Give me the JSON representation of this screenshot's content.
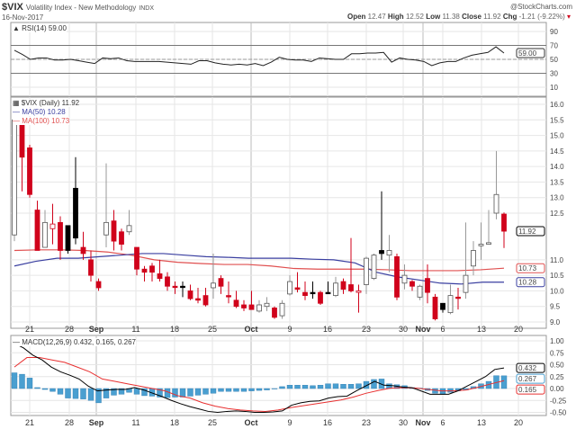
{
  "header": {
    "symbol": "$VIX",
    "name": "Volatility Index - New Methodology",
    "exchange": "INDX",
    "date": "16-Nov-2017",
    "brand": "@StockCharts.com",
    "open_label": "Open",
    "open": "12.47",
    "high_label": "High",
    "high": "12.52",
    "low_label": "Low",
    "low": "11.38",
    "close_label": "Close",
    "close": "11.92",
    "chg_label": "Chg",
    "chg": "-1.21 (-9.22%)"
  },
  "colors": {
    "down": "#d0021b",
    "up": "#222222",
    "ma50": "#3a3fa0",
    "ma100": "#e05050",
    "hist": "#4a9fd0",
    "macd": "#000000",
    "signal": "#e83030"
  },
  "chart_data": [
    {
      "type": "line",
      "title": "RSI(14) 59.00",
      "label": "RSI(14) 59.00",
      "ylim": [
        0,
        100
      ],
      "yticks": [
        "90",
        "70",
        "50",
        "30",
        "10"
      ],
      "ytick_values": [
        90,
        70,
        50,
        30,
        10
      ],
      "last_label": "59.00",
      "values": [
        63,
        57,
        50,
        52,
        52,
        49,
        49,
        50,
        48,
        46,
        44,
        52,
        51,
        52,
        48,
        47,
        47,
        47,
        47,
        46,
        45,
        44,
        43,
        48,
        48,
        45,
        43,
        42,
        43,
        42,
        44,
        41,
        46,
        53,
        50,
        49,
        49,
        47,
        52,
        51,
        50,
        50,
        58,
        58,
        59,
        59,
        60,
        46,
        52,
        50,
        49,
        47,
        41,
        45,
        47,
        47,
        52,
        56,
        58,
        60,
        68,
        59
      ]
    },
    {
      "type": "candlestick",
      "title": "$VIX (Daily) 11.92",
      "label": "$VIX (Daily) 11.92",
      "ylim": [
        9.0,
        16.0
      ],
      "yticks": [
        "16.0",
        "15.5",
        "15.0",
        "14.5",
        "14.0",
        "13.5",
        "13.0",
        "12.5",
        "11.0",
        "10.5",
        "10.0",
        "9.5",
        "9.0"
      ],
      "ytick_values": [
        16,
        15.5,
        15,
        14.5,
        14,
        13.5,
        13,
        12.5,
        11,
        10.5,
        10,
        9.5,
        9
      ],
      "last_label": "11.92",
      "ma50_label": "MA(50) 10.28",
      "ma100_label": "MA(100) 10.73",
      "ma50_last": "10.28",
      "ma100_last": "10.73",
      "ohlc": [
        [
          11.8,
          15.5,
          11.6,
          15.5,
          "h"
        ],
        [
          15.4,
          15.5,
          13.2,
          14.3,
          "r"
        ],
        [
          14.6,
          14.7,
          13.0,
          13.1,
          "r"
        ],
        [
          12.6,
          12.9,
          11.3,
          11.3,
          "r"
        ],
        [
          11.4,
          12.6,
          11.4,
          12.2,
          "h"
        ],
        [
          12.0,
          12.8,
          11.5,
          12.15,
          "hr"
        ],
        [
          12.2,
          12.4,
          11.0,
          11.3,
          "r"
        ],
        [
          12.1,
          12.1,
          11.2,
          11.3,
          "b"
        ],
        [
          13.3,
          14.3,
          11.5,
          11.7,
          "b"
        ],
        [
          11.4,
          11.9,
          11.0,
          11.2,
          "r"
        ],
        [
          11.0,
          11.3,
          10.3,
          10.5,
          "r"
        ],
        [
          10.3,
          10.4,
          10.0,
          10.1,
          "r"
        ],
        [
          11.8,
          14.1,
          11.4,
          12.2,
          "h"
        ],
        [
          12.25,
          12.6,
          11.3,
          11.6,
          "r"
        ],
        [
          11.9,
          12.0,
          11.3,
          11.5,
          "r"
        ],
        [
          11.9,
          12.6,
          11.8,
          12.1,
          "h"
        ],
        [
          11.4,
          11.4,
          10.5,
          10.7,
          "r"
        ],
        [
          10.7,
          10.8,
          10.3,
          10.6,
          "r"
        ],
        [
          10.8,
          10.9,
          10.3,
          10.6,
          "r"
        ],
        [
          10.55,
          11.0,
          10.3,
          10.4,
          "r"
        ],
        [
          10.45,
          10.6,
          10.0,
          10.15,
          "r"
        ],
        [
          10.15,
          10.3,
          9.9,
          10.15,
          "r"
        ],
        [
          10.15,
          10.3,
          9.8,
          10.15,
          "b"
        ],
        [
          10.0,
          10.2,
          9.7,
          9.75,
          "r"
        ],
        [
          9.75,
          10.1,
          9.6,
          9.7,
          "r"
        ],
        [
          9.85,
          10.1,
          9.5,
          9.55,
          "r"
        ],
        [
          10.1,
          11.2,
          9.75,
          10.25,
          "h"
        ],
        [
          10.4,
          10.5,
          9.9,
          10.15,
          "r"
        ],
        [
          9.85,
          10.3,
          9.6,
          9.85,
          "r"
        ],
        [
          9.7,
          10.0,
          9.45,
          9.5,
          "r"
        ],
        [
          9.55,
          9.7,
          9.35,
          9.45,
          "r"
        ],
        [
          9.55,
          10.0,
          9.4,
          9.4,
          "r"
        ],
        [
          9.35,
          9.7,
          9.3,
          9.55,
          "h"
        ],
        [
          9.5,
          9.8,
          9.35,
          9.6,
          "h"
        ],
        [
          9.45,
          9.5,
          9.1,
          9.15,
          "r"
        ],
        [
          9.2,
          9.7,
          9.1,
          9.6,
          "h"
        ],
        [
          9.9,
          10.5,
          9.85,
          10.3,
          "h"
        ],
        [
          10.1,
          10.6,
          9.95,
          10.05,
          "r"
        ],
        [
          9.95,
          10.3,
          9.7,
          9.85,
          "r"
        ],
        [
          9.95,
          10.3,
          9.75,
          9.95,
          "b"
        ],
        [
          9.95,
          10.0,
          9.55,
          9.6,
          "r"
        ],
        [
          9.95,
          10.3,
          9.9,
          9.95,
          "b"
        ],
        [
          9.85,
          10.45,
          9.8,
          10.25,
          "h"
        ],
        [
          10.3,
          10.4,
          9.9,
          10.05,
          "r"
        ],
        [
          10.2,
          11.7,
          9.95,
          10.0,
          "r"
        ],
        [
          9.95,
          10.2,
          9.3,
          10.0,
          "hr"
        ],
        [
          10.2,
          11.1,
          9.9,
          11.05,
          "h"
        ],
        [
          10.4,
          11.2,
          10.35,
          11.15,
          "h"
        ],
        [
          11.3,
          13.2,
          11.0,
          11.2,
          "b"
        ],
        [
          11.15,
          11.8,
          10.6,
          11.3,
          "h"
        ],
        [
          11.1,
          11.2,
          9.7,
          9.8,
          "r"
        ],
        [
          10.25,
          10.85,
          10.05,
          10.5,
          "h"
        ],
        [
          10.3,
          10.35,
          10.0,
          10.15,
          "r"
        ],
        [
          9.8,
          10.2,
          9.7,
          10.15,
          "h"
        ],
        [
          10.4,
          10.85,
          9.6,
          9.95,
          "r"
        ],
        [
          9.8,
          9.9,
          9.05,
          9.1,
          "r"
        ],
        [
          9.6,
          9.6,
          9.3,
          9.4,
          "b"
        ],
        [
          9.3,
          10.2,
          9.25,
          9.85,
          "h"
        ],
        [
          9.8,
          10.1,
          9.4,
          9.8,
          "r"
        ],
        [
          9.95,
          12.2,
          9.75,
          10.5,
          "h"
        ],
        [
          10.8,
          11.6,
          10.5,
          11.3,
          "h"
        ],
        [
          11.45,
          12.2,
          11.0,
          11.5,
          "h"
        ],
        [
          11.5,
          12.6,
          11.5,
          11.55,
          "h"
        ],
        [
          12.5,
          14.5,
          12.3,
          13.1,
          "h"
        ],
        [
          12.47,
          12.52,
          11.38,
          11.92,
          "r"
        ]
      ],
      "ma50": [
        10.8,
        10.95,
        11.05,
        11.05,
        11.1,
        11.15,
        11.2,
        11.2,
        11.15,
        11.1,
        11.08,
        11.05,
        11.05,
        11.05,
        11.02,
        11.0,
        10.9,
        10.6,
        10.45,
        10.35,
        10.25,
        10.22,
        10.28,
        10.28
      ],
      "ma100": [
        11.3,
        11.32,
        11.32,
        11.3,
        11.25,
        11.15,
        11.0,
        10.92,
        10.88,
        10.85,
        10.85,
        10.8,
        10.72,
        10.7,
        10.7,
        10.7,
        10.68,
        10.65,
        10.65,
        10.65,
        10.68,
        10.73
      ]
    },
    {
      "type": "macd",
      "title": "MACD(12,26,9) 0.432, 0.165, 0.267",
      "label": "MACD(12,26,9)",
      "macd_label": "0.432",
      "signal_label": "0.165",
      "hist_label": "0.267",
      "ylim": [
        -0.6,
        1.05
      ],
      "yticks": [
        "1.00",
        "0.75",
        "0.50",
        "0.25",
        "0.00",
        "-0.25",
        "-0.50"
      ],
      "ytick_values": [
        1,
        0.75,
        0.5,
        0.25,
        0,
        -0.25,
        -0.5
      ],
      "hist": [
        0.33,
        0.3,
        0.22,
        0.02,
        -0.02,
        -0.06,
        -0.12,
        -0.2,
        -0.21,
        -0.22,
        -0.25,
        -0.3,
        -0.2,
        -0.14,
        -0.12,
        -0.08,
        -0.12,
        -0.15,
        -0.16,
        -0.18,
        -0.19,
        -0.18,
        -0.18,
        -0.16,
        -0.14,
        -0.12,
        -0.1,
        -0.06,
        -0.06,
        -0.06,
        -0.06,
        -0.05,
        -0.04,
        -0.03,
        -0.01,
        0.04,
        0.07,
        0.07,
        0.07,
        0.06,
        0.07,
        0.1,
        0.1,
        0.09,
        0.09,
        0.1,
        0.15,
        0.19,
        0.2,
        0.1,
        0.08,
        0.06,
        0.02,
        0.01,
        -0.04,
        -0.1,
        -0.12,
        -0.08,
        -0.05,
        -0.03,
        0.04,
        0.1,
        0.15,
        0.27,
        0.267
      ],
      "macd": [
        0.95,
        0.85,
        0.7,
        0.6,
        0.45,
        0.35,
        0.28,
        0.2,
        0.05,
        -0.05,
        -0.03,
        -0.02,
        -0.02,
        0.02,
        -0.03,
        -0.1,
        -0.17,
        -0.25,
        -0.32,
        -0.38,
        -0.43,
        -0.48,
        -0.5,
        -0.48,
        -0.47,
        -0.48,
        -0.5,
        -0.5,
        -0.49,
        -0.47,
        -0.35,
        -0.3,
        -0.27,
        -0.26,
        -0.2,
        -0.17,
        -0.16,
        -0.05,
        0.05,
        0.15,
        0.07,
        0.06,
        0.03,
        0.02,
        -0.05,
        -0.12,
        -0.12,
        -0.12,
        -0.05,
        0.05,
        0.15,
        0.25,
        0.4,
        0.432
      ],
      "signal": [
        0.45,
        0.65,
        0.65,
        0.6,
        0.55,
        0.45,
        0.35,
        0.2,
        0.15,
        0.1,
        0.05,
        0.0,
        -0.05,
        -0.15,
        -0.2,
        -0.3,
        -0.37,
        -0.42,
        -0.45,
        -0.47,
        -0.48,
        -0.45,
        -0.4,
        -0.36,
        -0.32,
        -0.28,
        -0.24,
        -0.18,
        -0.1,
        -0.04,
        0.01,
        0.02,
        0.01,
        -0.02,
        -0.05,
        -0.05,
        -0.03,
        0.03,
        0.1,
        0.165
      ]
    }
  ],
  "xaxis": {
    "labels": [
      "21",
      "28",
      "Sep",
      "11",
      "18",
      "25",
      "Oct",
      "9",
      "16",
      "23",
      "30",
      "Nov",
      "6",
      "13",
      "20"
    ],
    "bold": [
      "Sep",
      "Oct",
      "Nov"
    ]
  }
}
